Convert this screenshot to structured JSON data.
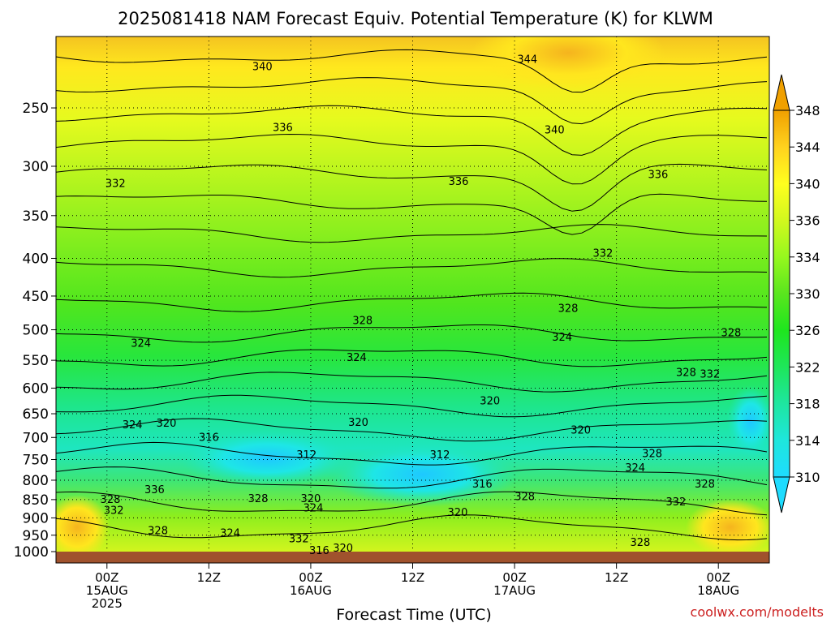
{
  "chart_data": {
    "type": "heatmap",
    "title": "2025081418 NAM Forecast Equiv. Potential Temperature (K) for KLWM",
    "xlabel": "Forecast Time (UTC)",
    "ylabel": "",
    "y_scale": "log-pressure",
    "y_inverted": true,
    "y_ticks": [
      250,
      300,
      350,
      400,
      450,
      500,
      550,
      600,
      650,
      700,
      750,
      800,
      850,
      900,
      950,
      1000
    ],
    "x_ticks": [
      {
        "hour": 6,
        "line1": "00Z",
        "line2": "15AUG",
        "line3": "2025"
      },
      {
        "hour": 18,
        "line1": "12Z",
        "line2": "",
        "line3": ""
      },
      {
        "hour": 30,
        "line1": "00Z",
        "line2": "16AUG",
        "line3": ""
      },
      {
        "hour": 42,
        "line1": "12Z",
        "line2": "",
        "line3": ""
      },
      {
        "hour": 54,
        "line1": "00Z",
        "line2": "17AUG",
        "line3": ""
      },
      {
        "hour": 66,
        "line1": "12Z",
        "line2": "",
        "line3": ""
      },
      {
        "hour": 78,
        "line1": "00Z",
        "line2": "18AUG",
        "line3": ""
      }
    ],
    "xlim": [
      0,
      84
    ],
    "ylim": [
      1000,
      200
    ],
    "grid": true,
    "colorbar": {
      "ticks": [
        348,
        344,
        340,
        336,
        334,
        330,
        326,
        322,
        318,
        314,
        310
      ],
      "colors": [
        "#f0a000",
        "#ffd21e",
        "#ffff1e",
        "#d2f81e",
        "#96f81e",
        "#5ae61e",
        "#1ee61e",
        "#1ee65a",
        "#1ee6a0",
        "#1ee6dc",
        "#1edcff"
      ],
      "extend": "both"
    },
    "contour_labels": [
      {
        "value": "340",
        "hour": 24.3,
        "p": 220
      },
      {
        "value": "344",
        "hour": 55.5,
        "p": 215
      },
      {
        "value": "336",
        "hour": 26.7,
        "p": 266
      },
      {
        "value": "340",
        "hour": 58.7,
        "p": 268
      },
      {
        "value": "332",
        "hour": 7.0,
        "p": 317
      },
      {
        "value": "336",
        "hour": 47.4,
        "p": 315
      },
      {
        "value": "336",
        "hour": 70.9,
        "p": 308
      },
      {
        "value": "332",
        "hour": 64.4,
        "p": 394
      },
      {
        "value": "328",
        "hour": 36.1,
        "p": 486
      },
      {
        "value": "328",
        "hour": 60.3,
        "p": 468
      },
      {
        "value": "324",
        "hour": 10.0,
        "p": 522
      },
      {
        "value": "324",
        "hour": 59.6,
        "p": 512
      },
      {
        "value": "328",
        "hour": 79.5,
        "p": 505
      },
      {
        "value": "324",
        "hour": 35.4,
        "p": 546
      },
      {
        "value": "328",
        "hour": 74.2,
        "p": 572
      },
      {
        "value": "332",
        "hour": 77.0,
        "p": 575
      },
      {
        "value": "320",
        "hour": 51.1,
        "p": 625
      },
      {
        "value": "320",
        "hour": 13.0,
        "p": 670
      },
      {
        "value": "324",
        "hour": 9.0,
        "p": 673
      },
      {
        "value": "320",
        "hour": 35.6,
        "p": 668
      },
      {
        "value": "320",
        "hour": 61.8,
        "p": 685
      },
      {
        "value": "316",
        "hour": 18.0,
        "p": 700
      },
      {
        "value": "312",
        "hour": 29.5,
        "p": 740
      },
      {
        "value": "312",
        "hour": 45.2,
        "p": 740
      },
      {
        "value": "328",
        "hour": 70.2,
        "p": 737
      },
      {
        "value": "324",
        "hour": 68.2,
        "p": 770
      },
      {
        "value": "316",
        "hour": 50.2,
        "p": 810
      },
      {
        "value": "328",
        "hour": 76.4,
        "p": 810
      },
      {
        "value": "336",
        "hour": 11.6,
        "p": 825
      },
      {
        "value": "328",
        "hour": 6.4,
        "p": 850
      },
      {
        "value": "328",
        "hour": 23.8,
        "p": 848
      },
      {
        "value": "320",
        "hour": 30.0,
        "p": 848
      },
      {
        "value": "328",
        "hour": 55.2,
        "p": 843
      },
      {
        "value": "324",
        "hour": 30.3,
        "p": 873
      },
      {
        "value": "332",
        "hour": 73.0,
        "p": 857
      },
      {
        "value": "332",
        "hour": 6.8,
        "p": 880
      },
      {
        "value": "320",
        "hour": 47.3,
        "p": 885
      },
      {
        "value": "328",
        "hour": 12.0,
        "p": 937
      },
      {
        "value": "324",
        "hour": 20.5,
        "p": 945
      },
      {
        "value": "332",
        "hour": 28.6,
        "p": 962
      },
      {
        "value": "328",
        "hour": 68.8,
        "p": 972
      },
      {
        "value": "320",
        "hour": 33.8,
        "p": 990
      },
      {
        "value": "316",
        "hour": 31.0,
        "p": 998
      }
    ]
  },
  "credit": "coolwx.com/modelts"
}
